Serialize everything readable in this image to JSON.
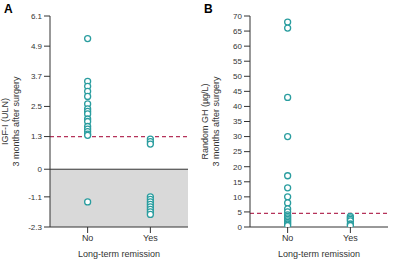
{
  "chart_data": [
    {
      "type": "scatter",
      "title": "A",
      "ylabel": [
        "IGF-I (ULN)",
        "3 months after surgery"
      ],
      "xlabel": "Long-term remission",
      "categories": [
        "No",
        "Yes"
      ],
      "values": [
        [
          5.2,
          3.5,
          3.3,
          3.1,
          2.9,
          2.6,
          2.4,
          2.3,
          2.2,
          2.0,
          1.9,
          1.7,
          1.6,
          1.5,
          1.4,
          1.35,
          -1.3
        ],
        [
          1.2,
          1.1,
          1.0,
          -1.1,
          -1.2,
          -1.3,
          -1.4,
          -1.5,
          -1.6,
          -1.7,
          -1.8
        ]
      ],
      "color": "#2a9d9f",
      "ylim": [
        -2.3,
        6.1
      ],
      "yticks": [
        -2.3,
        -1.1,
        0,
        1.3,
        2.5,
        3.7,
        4.9,
        6.1
      ],
      "threshold": 1.3,
      "shaded_range": [
        -2.3,
        0
      ]
    },
    {
      "type": "scatter",
      "title": "B",
      "ylabel": [
        "Random GH (µg/L)",
        "3 months after surgery"
      ],
      "xlabel": "Long-term remission",
      "categories": [
        "No",
        "Yes"
      ],
      "values": [
        [
          68,
          66,
          43,
          30,
          17,
          13,
          10,
          8,
          6,
          5,
          4,
          3.5,
          3,
          2.5,
          2,
          1.5,
          1,
          0.5
        ],
        [
          3.5,
          3,
          2.5,
          2,
          1,
          0.5
        ]
      ],
      "color": "#2a9d9f",
      "ylim": [
        0,
        70
      ],
      "yticks": [
        0,
        5,
        10,
        15,
        20,
        25,
        30,
        35,
        40,
        45,
        50,
        55,
        60,
        65,
        70
      ],
      "threshold": 4.5
    }
  ]
}
